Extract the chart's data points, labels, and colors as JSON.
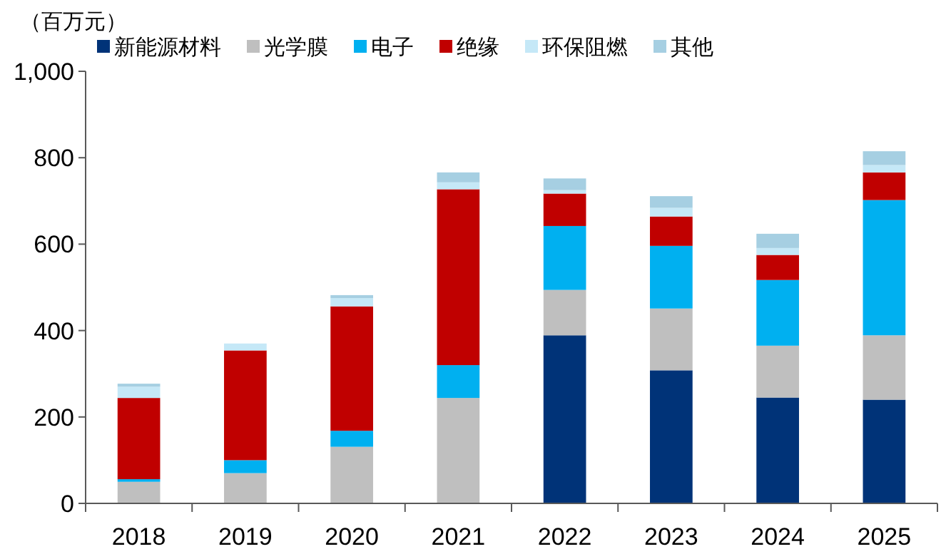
{
  "chart_data": {
    "type": "bar",
    "stacked": true,
    "ylabel": "（百万元）",
    "categories": [
      "2018",
      "2019",
      "2020",
      "2021",
      "2022",
      "2023",
      "2024",
      "2025"
    ],
    "series": [
      {
        "name": "新能源材料",
        "color": "#003378",
        "values": [
          0,
          0,
          0,
          0,
          389,
          308,
          245,
          240
        ]
      },
      {
        "name": "光学膜",
        "color": "#bfbfbf",
        "values": [
          50,
          70,
          131,
          244,
          105,
          143,
          120,
          149
        ]
      },
      {
        "name": "电子",
        "color": "#00b0f0",
        "values": [
          6,
          30,
          37,
          76,
          148,
          145,
          152,
          313
        ]
      },
      {
        "name": "绝缘",
        "color": "#c00000",
        "values": [
          188,
          254,
          288,
          407,
          75,
          68,
          58,
          64
        ]
      },
      {
        "name": "环保阻燃",
        "color": "#c5e8f7",
        "values": [
          26,
          16,
          19,
          16,
          8,
          20,
          16,
          17
        ]
      },
      {
        "name": "其他",
        "color": "#a6cfe2",
        "values": [
          7,
          null,
          7,
          23,
          27,
          27,
          33,
          32
        ]
      }
    ],
    "ylim": [
      0,
      1000
    ],
    "yticks": [
      0,
      {
        "value": 200,
        "label": "200"
      },
      {
        "value": 400,
        "label": "400"
      },
      {
        "value": 600,
        "label": "600"
      },
      {
        "value": 800,
        "label": "800"
      },
      {
        "value": 1000,
        "label": "1,000"
      }
    ],
    "legend": "top",
    "grid": false
  }
}
